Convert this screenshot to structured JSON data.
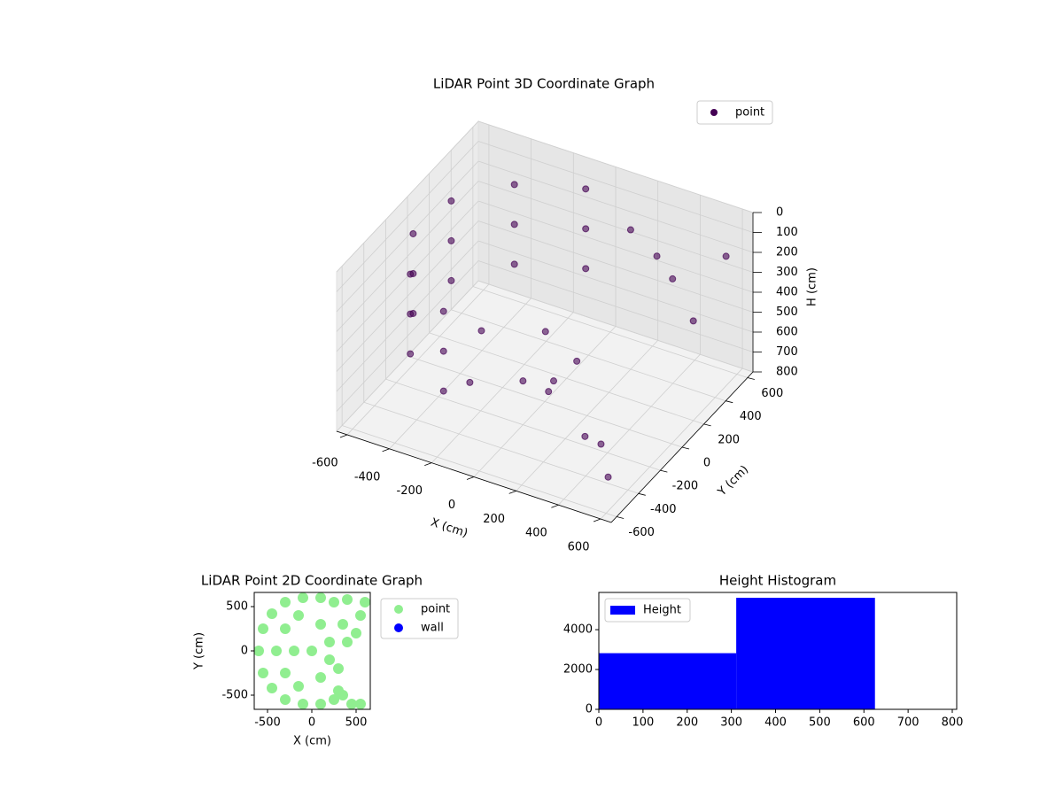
{
  "chart_data": [
    {
      "type": "scatter3d",
      "title": "LiDAR Point 3D Coordinate Graph",
      "xlabel": "X (cm)",
      "ylabel": "Y (cm)",
      "zlabel": "H (cm)",
      "xlim": [
        -650,
        650
      ],
      "ylim": [
        -650,
        650
      ],
      "zlim": [
        800,
        0
      ],
      "xticks": [
        -600,
        -400,
        -200,
        0,
        200,
        400,
        600
      ],
      "yticks": [
        -600,
        -400,
        -200,
        0,
        200,
        400,
        600
      ],
      "zticks": [
        0,
        100,
        200,
        300,
        400,
        500,
        600,
        700,
        800
      ],
      "grid": true,
      "legend": "upper right",
      "series": [
        {
          "name": "point",
          "color": "#440154",
          "x": [
            -101,
            -373,
            -545,
            -571,
            -444,
            -198,
            -101,
            -373,
            -545,
            -571,
            -444,
            -198,
            -101,
            -373,
            -545,
            -571,
            -444,
            -198,
            -300,
            -100,
            0,
            -200,
            100,
            250,
            300,
            200,
            350,
            450,
            600,
            600,
            550,
            500,
            620
          ],
          "y": [
            571,
            444,
            198,
            -101,
            -373,
            -545,
            571,
            444,
            198,
            -101,
            -373,
            -545,
            571,
            444,
            198,
            -101,
            -373,
            -545,
            0,
            200,
            -200,
            -300,
            100,
            -450,
            -500,
            400,
            350,
            300,
            200,
            500,
            -550,
            -600,
            -620
          ],
          "z": [
            100,
            100,
            100,
            100,
            100,
            100,
            300,
            300,
            300,
            300,
            300,
            300,
            500,
            500,
            500,
            500,
            500,
            500,
            550,
            600,
            580,
            600,
            620,
            400,
            300,
            100,
            150,
            200,
            300,
            150,
            500,
            450,
            600
          ]
        }
      ]
    },
    {
      "type": "scatter",
      "title": "LiDAR Point 2D Coordinate Graph",
      "xlabel": "X (cm)",
      "ylabel": "Y (cm)",
      "xlim": [
        -650,
        660
      ],
      "ylim": [
        -660,
        660
      ],
      "xticks": [
        -500,
        0,
        500
      ],
      "yticks": [
        -500,
        0,
        500
      ],
      "legend": "outside right",
      "series": [
        {
          "name": "point",
          "color": "#90ee90",
          "x": [
            -600,
            -550,
            -550,
            -450,
            -450,
            -300,
            -300,
            -100,
            -100,
            100,
            100,
            250,
            250,
            -400,
            -300,
            -300,
            -150,
            -150,
            0,
            -200,
            100,
            100,
            200,
            200,
            300,
            350,
            450,
            550,
            400,
            500,
            550,
            600,
            400,
            350,
            300
          ],
          "y": [
            0,
            -250,
            250,
            -420,
            420,
            -550,
            550,
            600,
            -600,
            600,
            -600,
            550,
            -550,
            0,
            -250,
            250,
            -400,
            400,
            0,
            0,
            -300,
            300,
            -100,
            100,
            -450,
            -500,
            -600,
            -600,
            100,
            200,
            400,
            550,
            580,
            300,
            -200
          ]
        },
        {
          "name": "wall",
          "color": "#0000ff",
          "x": [],
          "y": []
        }
      ]
    },
    {
      "type": "histogram",
      "title": "Height Histogram",
      "xlim": [
        0,
        810
      ],
      "ylim": [
        0,
        5870
      ],
      "xticks": [
        0,
        100,
        200,
        300,
        400,
        500,
        600,
        700,
        800
      ],
      "yticks": [
        0,
        2000,
        4000
      ],
      "legend": "upper left",
      "bins": [
        0,
        311,
        625,
        800
      ],
      "series": [
        {
          "name": "Height",
          "color": "#0000ff",
          "values": [
            2820,
            5600,
            0
          ]
        }
      ]
    }
  ]
}
